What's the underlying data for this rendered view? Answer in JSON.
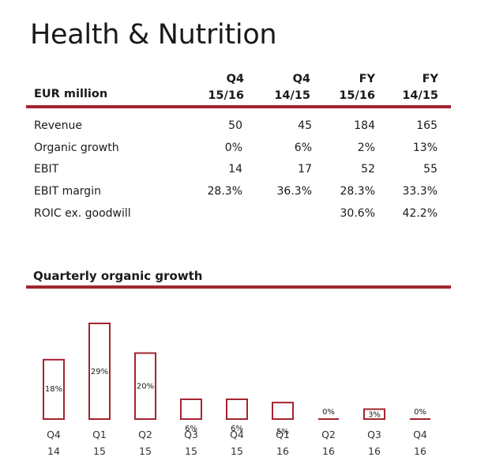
{
  "title": "Health & Nutrition",
  "table": {
    "unit_label": "EUR million",
    "columns": [
      {
        "line1": "Q4",
        "line2": "15/16"
      },
      {
        "line1": "Q4",
        "line2": "14/15"
      },
      {
        "line1": "FY",
        "line2": "15/16"
      },
      {
        "line1": "FY",
        "line2": "14/15"
      }
    ],
    "rows": [
      {
        "label": "Revenue",
        "values": [
          "50",
          "45",
          "184",
          "165"
        ]
      },
      {
        "label": "Organic growth",
        "values": [
          "0%",
          "6%",
          "2%",
          "13%"
        ]
      },
      {
        "label": "EBIT",
        "values": [
          "14",
          "17",
          "52",
          "55"
        ]
      },
      {
        "label": "EBIT margin",
        "values": [
          "28.3%",
          "36.3%",
          "28.3%",
          "33.3%"
        ]
      },
      {
        "label": "ROIC ex. goodwill",
        "values": [
          "",
          "",
          "30.6%",
          "42.2%"
        ]
      }
    ]
  },
  "chart_data": {
    "type": "bar",
    "title": "Quarterly organic growth",
    "categories": [
      {
        "q": "Q4",
        "y": "14"
      },
      {
        "q": "Q1",
        "y": "15"
      },
      {
        "q": "Q2",
        "y": "15"
      },
      {
        "q": "Q3",
        "y": "15"
      },
      {
        "q": "Q4",
        "y": "15"
      },
      {
        "q": "Q1",
        "y": "16"
      },
      {
        "q": "Q2",
        "y": "16"
      },
      {
        "q": "Q3",
        "y": "16"
      },
      {
        "q": "Q4",
        "y": "16"
      }
    ],
    "values": [
      18,
      29,
      20,
      6,
      6,
      5,
      0,
      3,
      0
    ],
    "labels": [
      "18%",
      "29%",
      "20%",
      "6%",
      "6%",
      "5%",
      "0%",
      "3%",
      "0%"
    ],
    "ylim": [
      0,
      29
    ],
    "grid": false,
    "colors": {
      "bar_outline": "#a32430",
      "rule": "#a32430"
    }
  }
}
